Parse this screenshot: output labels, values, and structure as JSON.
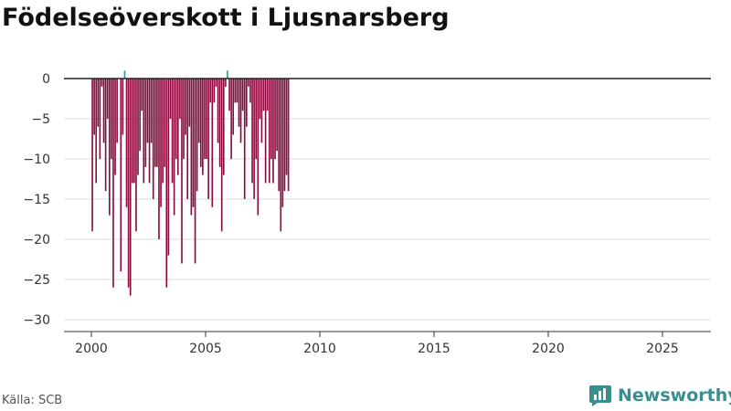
{
  "chart_data": {
    "type": "bar",
    "title": "Födelseöverskott i Ljusnarsberg",
    "xlabel": "",
    "ylabel": "",
    "x_start": "2000-01",
    "x_step": "month",
    "x_ticks": [
      "2000",
      "2005",
      "2010",
      "2015",
      "2020",
      "2025"
    ],
    "y_ticks": [
      0,
      -5,
      -10,
      -15,
      -20,
      -25,
      -30
    ],
    "ylim": [
      -30,
      1
    ],
    "xlim_years": [
      1999.3,
      2027
    ],
    "grid": true,
    "legend": "none",
    "colors": {
      "negative": "#8b0a3e",
      "positive": "#2a9d98",
      "grid": "#dddddd",
      "zero_line": "#222222"
    },
    "values": [
      -19,
      -7,
      -13,
      -6,
      -10,
      -1,
      -8,
      -14,
      -5,
      -17,
      -10,
      -26,
      -12,
      -8,
      0,
      -24,
      -7,
      1,
      -16,
      -26,
      -27,
      -13,
      -13,
      -19,
      -12,
      -9,
      -4,
      -13,
      -11,
      -8,
      -13,
      -8,
      -15,
      -11,
      -11,
      -20,
      -16,
      -13,
      -11,
      -26,
      -22,
      -5,
      -13,
      -17,
      -10,
      -12,
      -5,
      -23,
      -10,
      -7,
      -15,
      -6,
      -17,
      -16,
      -23,
      -14,
      -8,
      -11,
      -12,
      -10,
      -10,
      -15,
      -3,
      -16,
      -3,
      -1,
      -8,
      -11,
      -19,
      -12,
      -1,
      1,
      -4,
      -10,
      -7,
      -3,
      -3,
      -6,
      -8,
      -4,
      -15,
      -6,
      -1,
      -3,
      -13,
      -15,
      -10,
      -17,
      -5,
      -8,
      -4,
      -13,
      -4,
      -13,
      -10,
      -13,
      -10,
      -9,
      -14,
      -19,
      -16,
      -14,
      -12,
      -14
    ]
  },
  "footer": {
    "source": "Källa: SCB",
    "brand_name": "Newsworthy",
    "brand_icon": "bar-chart-logo-icon"
  }
}
